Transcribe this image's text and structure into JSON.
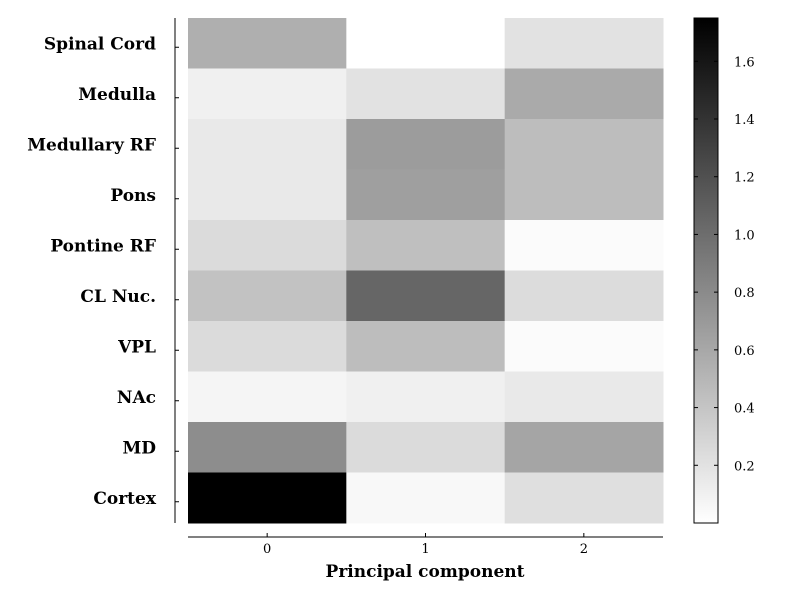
{
  "chart_data": {
    "type": "heatmap",
    "title": "",
    "xlabel": "Principal component",
    "ylabel": "",
    "x_categories": [
      "0",
      "1",
      "2"
    ],
    "y_categories": [
      "Spinal Cord",
      "Medulla",
      "Medullary RF",
      "Pons",
      "Pontine RF",
      "CL Nuc.",
      "VPL",
      "NAc",
      "MD",
      "Cortex"
    ],
    "values": [
      [
        0.55,
        0.0,
        0.2
      ],
      [
        0.1,
        0.2,
        0.58
      ],
      [
        0.15,
        0.68,
        0.45
      ],
      [
        0.15,
        0.66,
        0.45
      ],
      [
        0.25,
        0.44,
        0.03
      ],
      [
        0.42,
        1.05,
        0.24
      ],
      [
        0.25,
        0.45,
        0.03
      ],
      [
        0.07,
        0.1,
        0.15
      ],
      [
        0.78,
        0.25,
        0.62
      ],
      [
        1.75,
        0.05,
        0.22
      ]
    ],
    "colormap": "white-to-black",
    "colorbar": {
      "range": [
        0.0,
        1.75
      ],
      "ticks": [
        0.2,
        0.4,
        0.6,
        0.8,
        1.0,
        1.2,
        1.4,
        1.6
      ],
      "tick_labels": [
        "0.2",
        "0.4",
        "0.6",
        "0.8",
        "1.0",
        "1.2",
        "1.4",
        "1.6"
      ],
      "placement": "right"
    },
    "grid": false,
    "legend": "none"
  }
}
